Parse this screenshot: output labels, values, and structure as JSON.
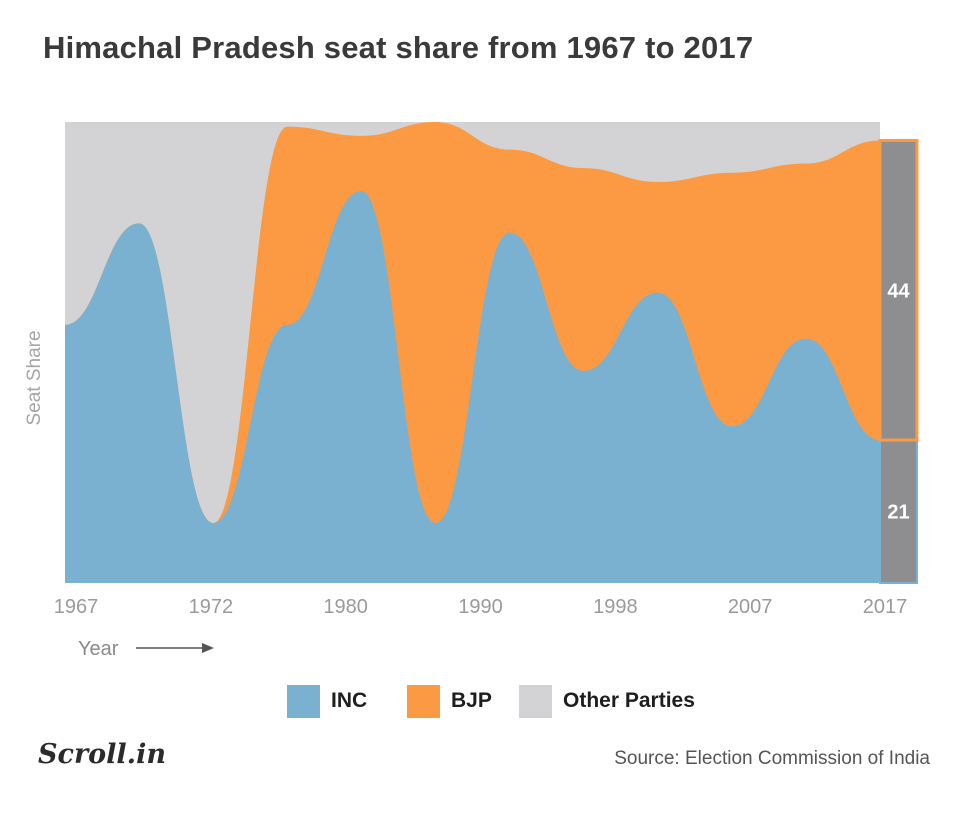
{
  "title": "Himachal Pradesh seat share from 1967 to 2017",
  "source": "Source: Election Commission of India",
  "brand": "Scroll.in",
  "colors": {
    "inc": "#7ab1d0",
    "bjp": "#fb9a43",
    "other": "#d3d3d5",
    "bar": "#8e8e91",
    "bar_outline": "#fb9a43"
  },
  "legend": [
    {
      "label": "INC",
      "color": "#7ab1d0"
    },
    {
      "label": "BJP",
      "color": "#fb9a43"
    },
    {
      "label": "Other Parties",
      "color": "#d3d3d5"
    }
  ],
  "chart_data": {
    "type": "area",
    "stacked": true,
    "normalized": true,
    "ylabel": "Seat Share",
    "xlabel": "Year",
    "x_tick_labels": [
      "1967",
      "1972",
      "1980",
      "1990",
      "1998",
      "2007",
      "2017"
    ],
    "x": [
      1967,
      1972,
      1977,
      1982,
      1985,
      1990,
      1993,
      1998,
      2003,
      2007,
      2012,
      2017
    ],
    "series": [
      {
        "name": "INC",
        "values": [
          0.56,
          0.78,
          0.13,
          0.56,
          0.85,
          0.13,
          0.76,
          0.46,
          0.63,
          0.34,
          0.53,
          0.31
        ]
      },
      {
        "name": "BJP",
        "values": [
          0.0,
          0.0,
          0.0,
          0.43,
          0.12,
          0.87,
          0.18,
          0.44,
          0.24,
          0.55,
          0.38,
          0.65
        ]
      },
      {
        "name": "Other Parties",
        "values": [
          0.44,
          0.22,
          0.87,
          0.01,
          0.03,
          0.0,
          0.06,
          0.1,
          0.13,
          0.11,
          0.09,
          0.04
        ]
      }
    ],
    "final_bar": {
      "year": 2017,
      "inc_label": "21",
      "bjp_label": "44"
    },
    "ylim": [
      0,
      1
    ],
    "grid": false,
    "legend_position": "bottom-center"
  }
}
